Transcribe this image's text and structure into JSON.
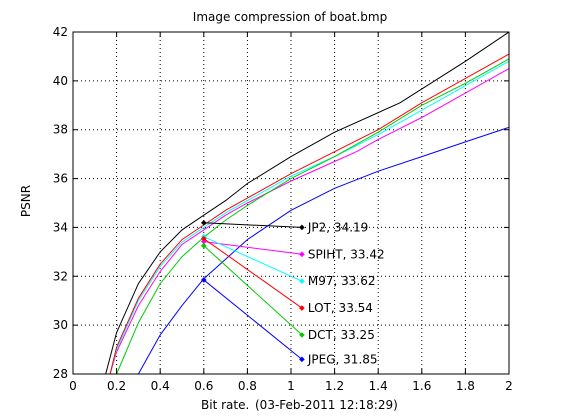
{
  "chart_data": {
    "type": "line",
    "title": "Image compression of boat.bmp",
    "xlabel": "Bit rate.",
    "xlabel_note": "(03-Feb-2011 12:18:29)",
    "ylabel": "PSNR",
    "xlim": [
      0,
      2
    ],
    "ylim": [
      28,
      42
    ],
    "grid": true,
    "xticks": [
      0,
      0.2,
      0.4,
      0.6,
      0.8,
      1,
      1.2,
      1.4,
      1.6,
      1.8,
      2
    ],
    "xtick_labels": [
      "0",
      "0.2",
      "0.4",
      "0.6",
      "0.8",
      "1",
      "1.2",
      "1.4",
      "1.6",
      "1.8",
      "2"
    ],
    "yticks": [
      28,
      30,
      32,
      34,
      36,
      38,
      40,
      42
    ],
    "ytick_labels": [
      "28",
      "30",
      "32",
      "34",
      "36",
      "38",
      "40",
      "42"
    ],
    "series": [
      {
        "name": "JP2",
        "color": "#000000",
        "x": [
          0.15,
          0.2,
          0.3,
          0.4,
          0.5,
          0.6,
          0.7,
          0.8,
          1.0,
          1.2,
          1.5,
          1.8,
          2.0
        ],
        "y": [
          28.0,
          29.7,
          31.7,
          33.0,
          33.9,
          34.5,
          35.1,
          35.8,
          36.9,
          37.9,
          39.1,
          40.8,
          42.0
        ],
        "marker": {
          "x": 0.6,
          "y": 34.19
        },
        "annotation": {
          "label": "JP2, 34.19",
          "x": 1.05,
          "y": 34.0
        }
      },
      {
        "name": "SPIHT",
        "color": "#ff00ff",
        "x": [
          0.17,
          0.2,
          0.3,
          0.4,
          0.5,
          0.6,
          0.7,
          0.8,
          1.0,
          1.2,
          1.3,
          1.4,
          1.6,
          1.8,
          2.0
        ],
        "y": [
          28.0,
          28.9,
          30.8,
          32.2,
          33.3,
          33.9,
          34.5,
          35.0,
          35.9,
          36.7,
          37.1,
          37.6,
          38.5,
          39.5,
          40.5
        ],
        "marker": {
          "x": 0.6,
          "y": 33.42
        },
        "annotation": {
          "label": "SPIHT, 33.42",
          "x": 1.05,
          "y": 32.9
        }
      },
      {
        "name": "M97",
        "color": "#00ffff",
        "x": [
          0.17,
          0.2,
          0.3,
          0.4,
          0.5,
          0.6,
          0.7,
          0.8,
          1.0,
          1.2,
          1.4,
          1.6,
          1.8,
          2.0
        ],
        "y": [
          28.0,
          29.0,
          31.0,
          32.4,
          33.4,
          34.0,
          34.6,
          35.1,
          36.1,
          36.9,
          37.8,
          38.8,
          39.8,
          40.8
        ],
        "marker": {
          "x": 0.6,
          "y": 33.62
        },
        "annotation": {
          "label": "M97, 33.62",
          "x": 1.05,
          "y": 31.8
        }
      },
      {
        "name": "LOT",
        "color": "#ff0000",
        "x": [
          0.17,
          0.2,
          0.3,
          0.4,
          0.5,
          0.6,
          0.7,
          0.8,
          1.0,
          1.2,
          1.4,
          1.6,
          1.8,
          2.0
        ],
        "y": [
          28.0,
          29.1,
          31.1,
          32.5,
          33.5,
          34.1,
          34.7,
          35.2,
          36.2,
          37.1,
          38.0,
          39.1,
          40.1,
          41.1
        ],
        "marker": {
          "x": 0.6,
          "y": 33.54
        },
        "annotation": {
          "label": "LOT, 33.54",
          "x": 1.05,
          "y": 30.7
        }
      },
      {
        "name": "DCT",
        "color": "#00cc00",
        "x": [
          0.2,
          0.3,
          0.4,
          0.5,
          0.6,
          0.7,
          0.8,
          1.0,
          1.2,
          1.4,
          1.6,
          1.8,
          2.0
        ],
        "y": [
          28.0,
          30.1,
          31.7,
          32.8,
          33.6,
          34.3,
          34.9,
          36.0,
          36.9,
          37.9,
          39.0,
          39.9,
          40.9
        ],
        "marker": {
          "x": 0.6,
          "y": 33.25
        },
        "annotation": {
          "label": "DCT, 33.25",
          "x": 1.05,
          "y": 29.6
        }
      },
      {
        "name": "JPEG",
        "color": "#0000ff",
        "x": [
          0.3,
          0.4,
          0.5,
          0.6,
          0.7,
          0.8,
          1.0,
          1.2,
          1.4,
          1.6,
          1.8,
          2.0
        ],
        "y": [
          28.0,
          29.6,
          30.8,
          31.9,
          32.7,
          33.5,
          34.7,
          35.6,
          36.3,
          36.9,
          37.5,
          38.1
        ],
        "marker": {
          "x": 0.6,
          "y": 31.85
        },
        "annotation": {
          "label": "JPEG, 31.85",
          "x": 1.05,
          "y": 28.6
        }
      }
    ]
  }
}
